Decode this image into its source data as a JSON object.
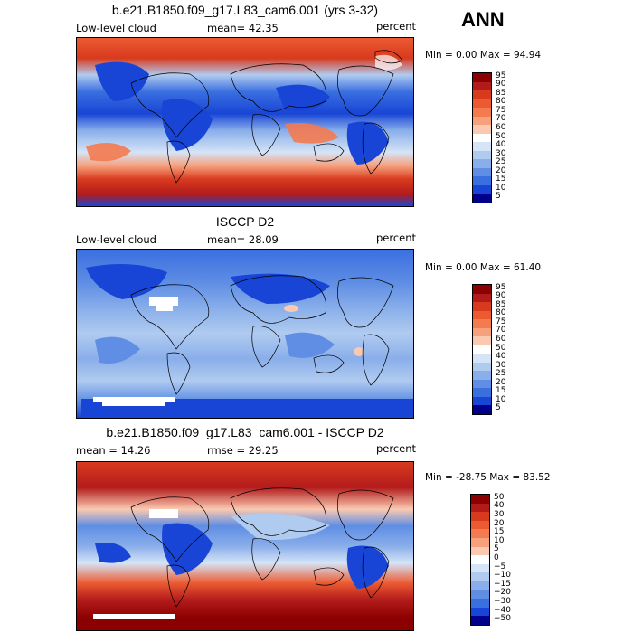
{
  "season": "ANN",
  "panels": [
    {
      "title": "b.e21.B1850.f09_g17.L83_cam6.001 (yrs 3-32)",
      "left_label": "Low-level cloud",
      "center_label": "mean=  42.35",
      "right_label": "percent",
      "minmax": "Min =   0.00 Max =  94.94",
      "colorbar_labels": [
        "95",
        "90",
        "85",
        "80",
        "75",
        "70",
        "60",
        "50",
        "40",
        "30",
        "25",
        "20",
        "15",
        "10",
        "5"
      ],
      "colorbar_colors": [
        "#8b0000",
        "#b31b1b",
        "#d83a1e",
        "#ec5a31",
        "#f47a50",
        "#f7a07c",
        "#fac9b1",
        "#ffffff",
        "#d5e4f7",
        "#b0cbf0",
        "#89aeea",
        "#5f8ee4",
        "#3a6fe0",
        "#1845d6",
        "#00008b"
      ]
    },
    {
      "title": "ISCCP D2",
      "left_label": "Low-level cloud",
      "center_label": "mean=  28.09",
      "right_label": "percent",
      "minmax": "Min =   0.00 Max =  61.40",
      "colorbar_labels": [
        "95",
        "90",
        "85",
        "80",
        "75",
        "70",
        "60",
        "50",
        "40",
        "30",
        "25",
        "20",
        "15",
        "10",
        "5"
      ],
      "colorbar_colors": [
        "#8b0000",
        "#b31b1b",
        "#d83a1e",
        "#ec5a31",
        "#f47a50",
        "#f7a07c",
        "#fac9b1",
        "#ffffff",
        "#d5e4f7",
        "#b0cbf0",
        "#89aeea",
        "#5f8ee4",
        "#3a6fe0",
        "#1845d6",
        "#00008b"
      ]
    },
    {
      "title": "b.e21.B1850.f09_g17.L83_cam6.001 - ISCCP D2",
      "left_label": "mean =  14.26",
      "center_label": "rmse =  29.25",
      "right_label": "percent",
      "minmax": "Min = -28.75 Max =  83.52",
      "colorbar_labels": [
        "50",
        "40",
        "30",
        "20",
        "15",
        "10",
        "5",
        "0",
        "−5",
        "−10",
        "−15",
        "−20",
        "−30",
        "−40",
        "−50"
      ],
      "colorbar_colors": [
        "#8b0000",
        "#b31b1b",
        "#d83a1e",
        "#ec5a31",
        "#f47a50",
        "#f7a07c",
        "#fac9b1",
        "#ffffff",
        "#d5e4f7",
        "#b0cbf0",
        "#89aeea",
        "#5f8ee4",
        "#3a6fe0",
        "#1845d6",
        "#00008b"
      ]
    }
  ]
}
